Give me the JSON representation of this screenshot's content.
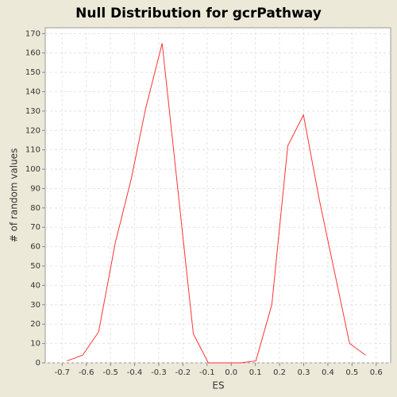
{
  "chart_data": {
    "type": "line",
    "title": "Null Distribution for gcrPathway",
    "x_label": "ES",
    "y_label": "# of random values",
    "series": [
      {
        "name": "null",
        "color": "#ff3333",
        "x": [
          -0.68,
          -0.615,
          -0.549,
          -0.48,
          -0.414,
          -0.355,
          -0.286,
          -0.157,
          -0.095,
          -0.03,
          0.037,
          0.102,
          0.168,
          0.234,
          0.299,
          0.365,
          0.49,
          0.556
        ],
        "values": [
          1,
          4,
          16,
          62,
          95,
          131,
          165,
          15,
          0,
          0,
          0,
          1,
          30,
          112,
          128,
          84,
          10,
          4
        ]
      }
    ],
    "xlim": [
      -0.77,
      0.66
    ],
    "ylim": [
      0,
      173
    ],
    "xticks": [
      -0.7,
      -0.6,
      -0.5,
      -0.4,
      -0.3,
      -0.2,
      -0.1,
      {
        "value": 0,
        "label": "0.0"
      },
      0.1,
      0.2,
      0.3,
      0.4,
      0.5,
      0.6
    ],
    "yticks": [
      0,
      10,
      20,
      30,
      40,
      50,
      60,
      70,
      80,
      90,
      100,
      110,
      120,
      130,
      140,
      150,
      160,
      170
    ],
    "grid": true
  }
}
